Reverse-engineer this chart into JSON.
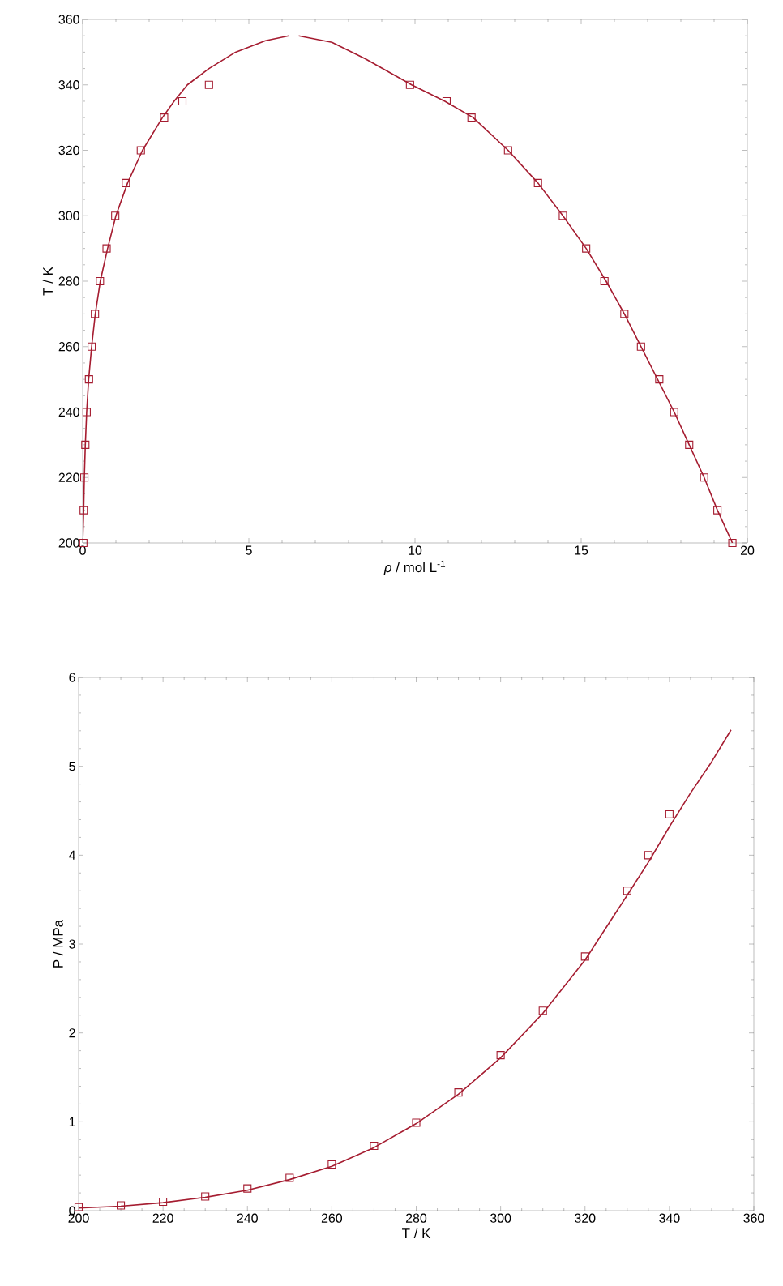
{
  "chart_data": [
    {
      "type": "line",
      "xlabel": "*ρ* / mol L$^{-1}$",
      "ylabel": "T / K",
      "xlim": [
        0,
        20
      ],
      "ylim": [
        200,
        360
      ],
      "xticks": [
        0,
        5,
        10,
        15,
        20
      ],
      "yticks": [
        200,
        220,
        240,
        260,
        280,
        300,
        320,
        340,
        360
      ],
      "series": [
        {
          "type": "scatter",
          "marker": "square",
          "color": "#a51c30",
          "x": [
            0.02,
            0.03,
            0.05,
            0.08,
            0.12,
            0.19,
            0.27,
            0.37,
            0.52,
            0.72,
            0.98,
            1.3,
            1.75,
            2.45,
            3.0,
            3.8
          ],
          "values": [
            200,
            210,
            220,
            230,
            240,
            250,
            260,
            270,
            280,
            290,
            300,
            310,
            320,
            330,
            335,
            340
          ]
        },
        {
          "type": "scatter",
          "marker": "square",
          "color": "#a51c30",
          "x": [
            9.85,
            10.95,
            11.7,
            12.8,
            13.7,
            14.45,
            15.15,
            15.7,
            16.3,
            16.8,
            17.35,
            17.8,
            18.25,
            18.7,
            19.1,
            19.55
          ],
          "values": [
            340,
            335,
            330,
            320,
            310,
            300,
            290,
            280,
            270,
            260,
            250,
            240,
            230,
            220,
            210,
            200
          ]
        },
        {
          "type": "line",
          "color": "#a51c30",
          "x": [
            0,
            0.03,
            0.05,
            0.08,
            0.12,
            0.18,
            0.27,
            0.38,
            0.53,
            0.75,
            1.0,
            1.35,
            1.8,
            2.4,
            2.75,
            3.15,
            3.8,
            4.6,
            5.5,
            6.2
          ],
          "values": [
            200,
            210,
            220,
            230,
            240,
            250,
            260,
            270,
            280,
            290,
            300,
            310,
            320,
            330,
            335,
            340,
            345,
            350,
            353.5,
            355
          ]
        },
        {
          "type": "line",
          "color": "#a51c30",
          "x": [
            6.5,
            7.5,
            8.5,
            9.9,
            10.9,
            11.75,
            12.8,
            13.7,
            14.45,
            15.15,
            15.75,
            16.3,
            16.8,
            17.3,
            17.8,
            18.25,
            18.7,
            19.1,
            19.55
          ],
          "values": [
            355,
            353,
            348,
            340,
            335,
            330,
            320,
            310,
            300,
            290,
            280,
            270,
            260,
            250,
            240,
            230,
            220,
            210,
            200
          ]
        }
      ]
    },
    {
      "type": "line",
      "xlabel": "T / K",
      "ylabel": "P / MPa",
      "xlim": [
        200,
        360
      ],
      "ylim": [
        0,
        6
      ],
      "xticks": [
        200,
        220,
        240,
        260,
        280,
        300,
        320,
        340,
        360
      ],
      "yticks": [
        0,
        1,
        2,
        3,
        4,
        5,
        6
      ],
      "series": [
        {
          "type": "scatter",
          "marker": "square",
          "color": "#a51c30",
          "x": [
            200,
            210,
            220,
            230,
            240,
            250,
            260,
            270,
            280,
            290,
            300,
            310,
            320,
            330,
            335,
            340
          ],
          "values": [
            0.04,
            0.06,
            0.1,
            0.16,
            0.25,
            0.37,
            0.52,
            0.73,
            0.99,
            1.33,
            1.75,
            2.25,
            2.86,
            3.6,
            4.0,
            4.46
          ]
        },
        {
          "type": "line",
          "color": "#a51c30",
          "x": [
            200,
            210,
            220,
            230,
            240,
            250,
            260,
            270,
            280,
            290,
            300,
            310,
            320,
            330,
            335,
            340,
            345,
            350,
            354.6
          ],
          "values": [
            0.03,
            0.05,
            0.09,
            0.15,
            0.23,
            0.35,
            0.5,
            0.71,
            0.98,
            1.31,
            1.72,
            2.22,
            2.82,
            3.55,
            3.92,
            4.32,
            4.7,
            5.05,
            5.41
          ]
        }
      ]
    }
  ]
}
